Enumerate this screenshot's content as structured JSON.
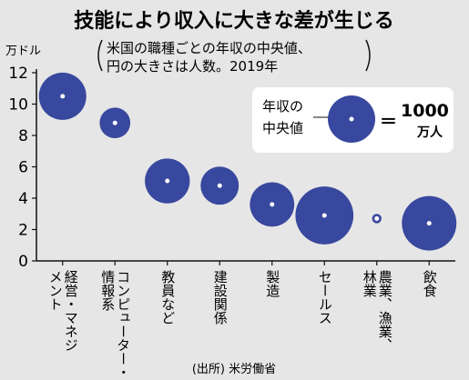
{
  "chart_data": {
    "type": "scatter",
    "title": "技能により収入に大きな差が生じる",
    "subtitle_lines": [
      "米国の職種ごとの年収の中央値、",
      "円の大きさは人数。2019年"
    ],
    "y_unit": "万ドル",
    "ylim": [
      0,
      12
    ],
    "yticks": [
      0,
      2,
      4,
      6,
      8,
      10,
      12
    ],
    "grid": false,
    "categories": [
      {
        "label_lines": [
          "経営・マネジ",
          "メント"
        ],
        "value": 10.5,
        "workers": 1000
      },
      {
        "label_lines": [
          "コンピューター・",
          "情報系"
        ],
        "value": 8.8,
        "workers": 420
      },
      {
        "label_lines": [
          "教員など"
        ],
        "value": 5.1,
        "workers": 900
      },
      {
        "label_lines": [
          "建設関係"
        ],
        "value": 4.8,
        "workers": 650
      },
      {
        "label_lines": [
          "製造"
        ],
        "value": 3.6,
        "workers": 880
      },
      {
        "label_lines": [
          "セールス"
        ],
        "value": 2.9,
        "workers": 1500
      },
      {
        "label_lines": [
          "農業、漁業、",
          "林業"
        ],
        "value": 2.7,
        "workers": 40
      },
      {
        "label_lines": [
          "飲食"
        ],
        "value": 2.4,
        "workers": 1330
      }
    ],
    "legend": {
      "label_lines": [
        "年収の",
        "中央値"
      ],
      "equals": "＝",
      "value": "1000",
      "unit": "万人",
      "reference_workers": 1000
    },
    "source": "(出所) 米労働省",
    "colors": {
      "bubble": "#38489e",
      "background": "#e6e6e6",
      "axis": "#111111"
    }
  }
}
